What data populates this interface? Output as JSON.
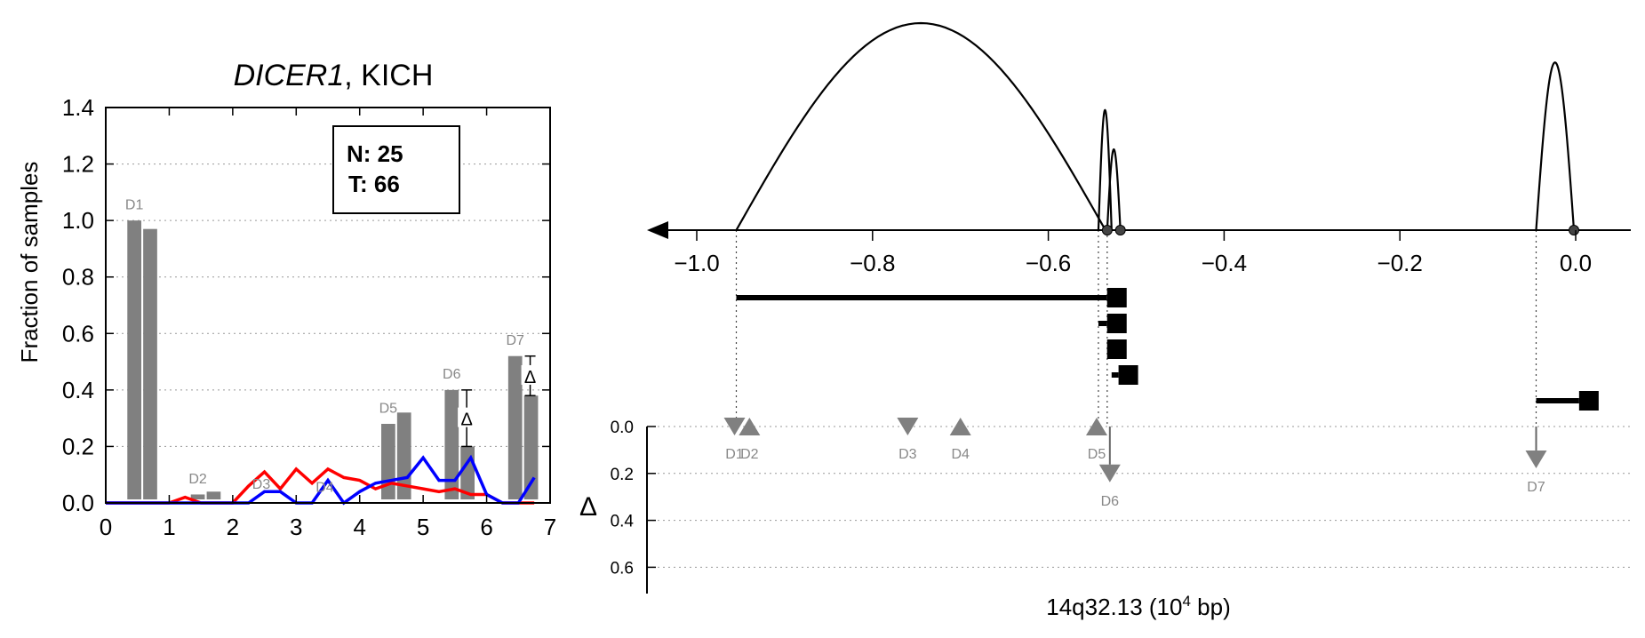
{
  "chart_data": [
    {
      "type": "bar",
      "title_gene": "DICER1",
      "title_rest": ", KICH",
      "ylabel": "Fraction of samples",
      "xlim": [
        0,
        7
      ],
      "ylim": [
        0,
        1.4
      ],
      "xticks": [
        "0",
        "1",
        "2",
        "3",
        "4",
        "5",
        "6",
        "7"
      ],
      "yticks": [
        "0.0",
        "0.2",
        "0.4",
        "0.6",
        "0.8",
        "1.0",
        "1.2",
        "1.4"
      ],
      "legend": {
        "n_label": "N: 25",
        "t_label": "T: 66"
      },
      "bars": [
        {
          "x": 0.45,
          "value": 1.0
        },
        {
          "x": 0.7,
          "value": 0.97
        },
        {
          "x": 1.45,
          "value": 0.03
        },
        {
          "x": 1.7,
          "value": 0.04
        },
        {
          "x": 2.45,
          "value": 0.01
        },
        {
          "x": 2.7,
          "value": 0.01
        },
        {
          "x": 3.45,
          "value": 0.0
        },
        {
          "x": 3.7,
          "value": 0.0
        },
        {
          "x": 4.45,
          "value": 0.28
        },
        {
          "x": 4.7,
          "value": 0.32
        },
        {
          "x": 5.45,
          "value": 0.4
        },
        {
          "x": 5.7,
          "value": 0.2
        },
        {
          "x": 6.45,
          "value": 0.52
        },
        {
          "x": 6.7,
          "value": 0.38
        }
      ],
      "group_labels": [
        {
          "label": "D1",
          "x": 0.45,
          "y": 1.04
        },
        {
          "label": "D2",
          "x": 1.45,
          "y": 0.07
        },
        {
          "label": "D3",
          "x": 2.45,
          "y": 0.05
        },
        {
          "label": "D4",
          "x": 3.45,
          "y": 0.04
        },
        {
          "label": "D5",
          "x": 4.45,
          "y": 0.32
        },
        {
          "label": "D6",
          "x": 5.45,
          "y": 0.44
        },
        {
          "label": "D7",
          "x": 6.45,
          "y": 0.56
        }
      ],
      "deltas": [
        {
          "x": 5.7,
          "from": 0.4,
          "to": 0.2
        },
        {
          "x": 6.7,
          "from": 0.52,
          "to": 0.38
        }
      ],
      "delta_symbol": "Δ",
      "series": [
        {
          "color": "#ff0000",
          "x": [
            0,
            1,
            1.25,
            1.5,
            2,
            2.25,
            2.5,
            2.75,
            3,
            3.25,
            3.5,
            3.75,
            4,
            4.25,
            4.5,
            4.75,
            5,
            5.25,
            5.5,
            5.75,
            6,
            6.25,
            6.5,
            6.75
          ],
          "y": [
            0,
            0,
            0.02,
            0,
            0,
            0.06,
            0.11,
            0.05,
            0.12,
            0.07,
            0.12,
            0.09,
            0.08,
            0.05,
            0.07,
            0.06,
            0.05,
            0.04,
            0.05,
            0.03,
            0.03,
            0.0,
            0.0,
            0.0
          ]
        },
        {
          "color": "#0000ff",
          "x": [
            0,
            2,
            2.25,
            2.5,
            2.75,
            3,
            3.25,
            3.5,
            3.75,
            4,
            4.25,
            4.5,
            4.75,
            5,
            5.25,
            5.5,
            5.75,
            6,
            6.25,
            6.5,
            6.75
          ],
          "y": [
            0,
            0,
            0.0,
            0.04,
            0.04,
            0.0,
            0.0,
            0.08,
            0.0,
            0.04,
            0.07,
            0.08,
            0.09,
            0.16,
            0.08,
            0.08,
            0.16,
            0.03,
            0.0,
            0.0,
            0.09
          ]
        }
      ]
    },
    {
      "type": "diagram",
      "xlabel_main": "14q32.13 (10",
      "xlabel_sup": "4",
      "xlabel_tail": " bp)",
      "delta_label": "Δ",
      "xlim": [
        -1.05,
        0.03
      ],
      "xticks": [
        {
          "v": -1.0,
          "label": "−1.0"
        },
        {
          "v": -0.8,
          "label": "−0.8"
        },
        {
          "v": -0.6,
          "label": "−0.6"
        },
        {
          "v": -0.4,
          "label": "−0.4"
        },
        {
          "v": -0.2,
          "label": "−0.2"
        },
        {
          "v": 0.0,
          "label": "0.0"
        }
      ],
      "arcs": [
        {
          "from": -0.955,
          "to": -0.535,
          "height": 1.0
        },
        {
          "from": -0.543,
          "to": -0.528,
          "height": 0.58
        },
        {
          "from": -0.533,
          "to": -0.518,
          "height": 0.39
        },
        {
          "from": -0.045,
          "to": -0.002,
          "height": 0.81
        }
      ],
      "nodes": [
        -0.533,
        -0.518,
        -0.002
      ],
      "segments": [
        {
          "from": -0.955,
          "to": -0.523,
          "row": 0
        },
        {
          "from": -0.543,
          "to": -0.523,
          "row": 1
        },
        {
          "from": -0.533,
          "to": -0.523,
          "row": 2
        },
        {
          "from": -0.528,
          "to": -0.51,
          "row": 3
        },
        {
          "from": -0.045,
          "to": 0.014,
          "row": 4
        }
      ],
      "vlines": [
        -0.955,
        -0.543,
        -0.533,
        -0.045
      ],
      "delta_yticks": [
        "0.0",
        "0.2",
        "0.4",
        "0.6"
      ],
      "delta_ylim": [
        0,
        0.7
      ],
      "markers": [
        {
          "label": "D1",
          "x": -0.957,
          "dir": "down",
          "delta": 0.0
        },
        {
          "label": "D2",
          "x": -0.94,
          "dir": "up",
          "delta": 0.0
        },
        {
          "label": "D3",
          "x": -0.76,
          "dir": "down",
          "delta": 0.0
        },
        {
          "label": "D4",
          "x": -0.7,
          "dir": "up",
          "delta": 0.0
        },
        {
          "label": "D5",
          "x": -0.545,
          "dir": "up",
          "delta": 0.0
        },
        {
          "label": "D6",
          "x": -0.53,
          "dir": "down",
          "delta": 0.2
        },
        {
          "label": "D7",
          "x": -0.045,
          "dir": "down",
          "delta": 0.14
        }
      ]
    }
  ]
}
